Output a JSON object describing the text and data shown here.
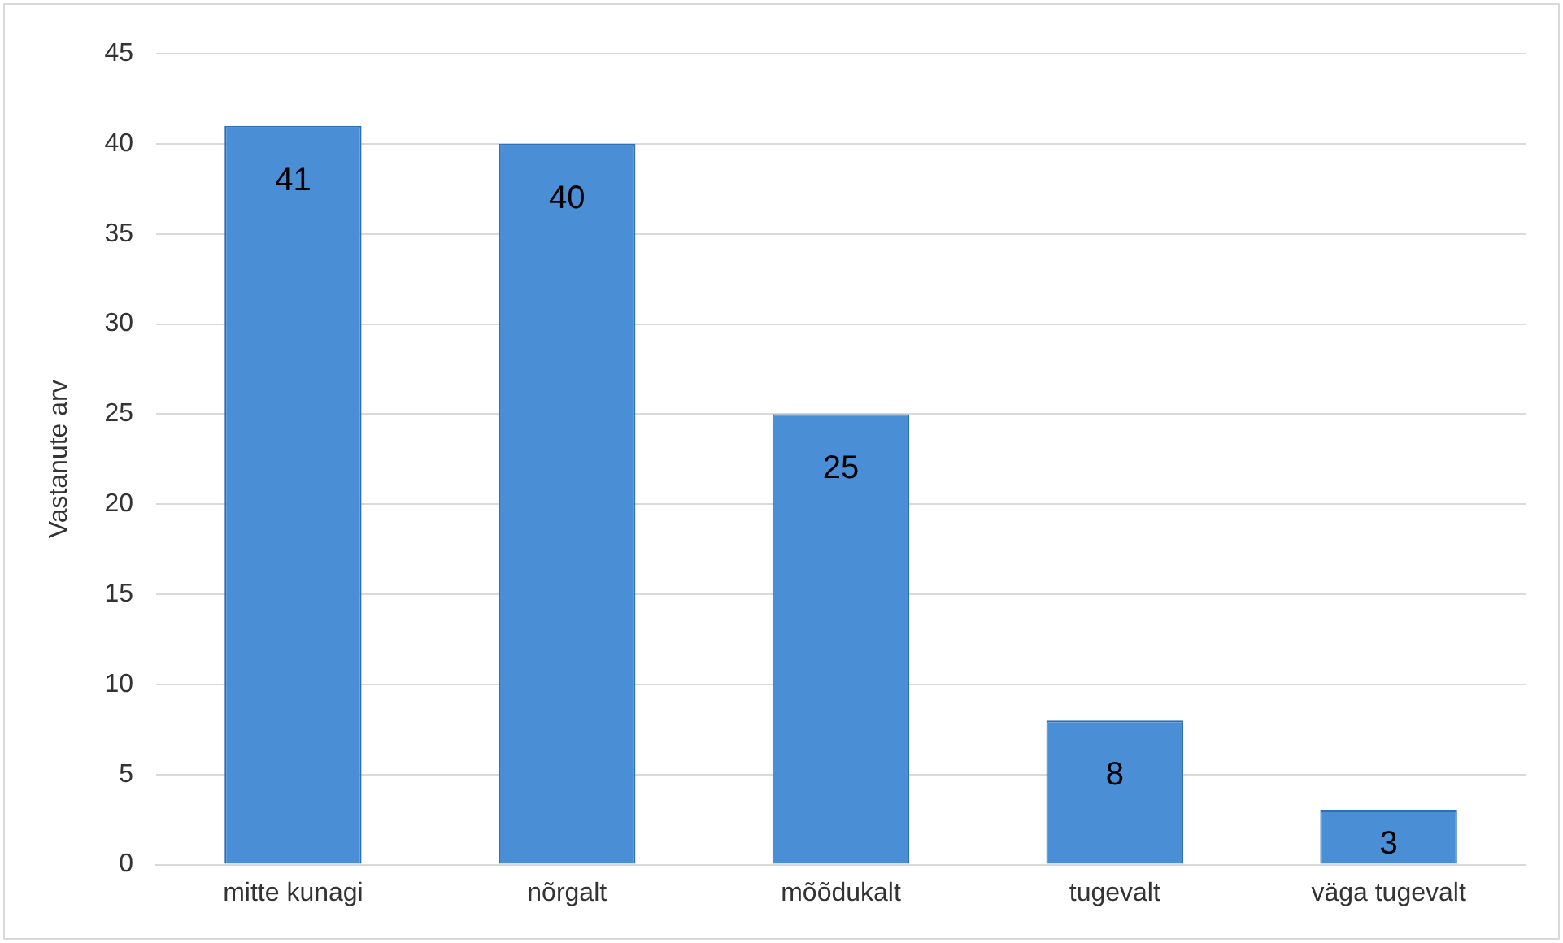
{
  "chart_data": {
    "type": "bar",
    "ylabel": "Vastanute arv",
    "categories": [
      "mitte kunagi",
      "nõrgalt",
      "mõõdukalt",
      "tugevalt",
      "väga tugevalt"
    ],
    "values": [
      41,
      40,
      25,
      8,
      3
    ],
    "color": "#4a8fd6",
    "ylim": [
      0,
      45
    ],
    "yticks": [
      0,
      5,
      10,
      15,
      20,
      25,
      30,
      35,
      40,
      45
    ],
    "grid": "y",
    "data_labels": true
  }
}
